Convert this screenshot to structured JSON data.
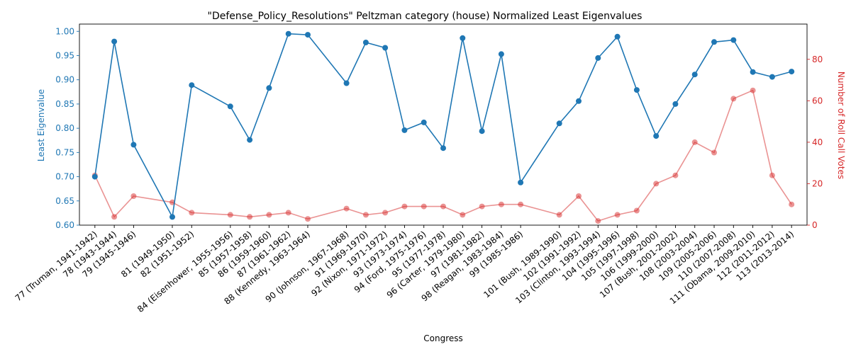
{
  "chart_data": {
    "type": "line",
    "title": "\"Defense_Policy_Resolutions\" Peltzman category (house) Normalized Least Eigenvalues",
    "xlabel": "Congress",
    "ylabel_left": "Least Eigenvalue",
    "ylabel_right": "Number of Roll Call Votes",
    "ylim_left": [
      0.6,
      1.015
    ],
    "ylim_right": [
      0,
      97
    ],
    "yticks_left": [
      "0.60",
      "0.65",
      "0.70",
      "0.75",
      "0.80",
      "0.85",
      "0.90",
      "0.95",
      "1.00"
    ],
    "yticks_right": [
      "0",
      "20",
      "40",
      "60",
      "80"
    ],
    "grid": false,
    "x": [
      77,
      78,
      79,
      81,
      82,
      84,
      85,
      86,
      87,
      88,
      90,
      91,
      92,
      93,
      94,
      95,
      96,
      97,
      98,
      99,
      101,
      102,
      103,
      104,
      105,
      106,
      107,
      108,
      109,
      110,
      111,
      112,
      113
    ],
    "x_tick_labels": [
      "77 (Truman, 1941-1942)",
      "78 (1943-1944)",
      "79 (1945-1946)",
      "81 (1949-1950)",
      "82 (1951-1952)",
      "84 (Eisenhower, 1955-1956)",
      "85 (1957-1958)",
      "86 (1959-1960)",
      "87 (1961-1962)",
      "88 (Kennedy, 1963-1964)",
      "90 (Johnson, 1967-1968)",
      "91 (1969-1970)",
      "92 (Nixon, 1971-1972)",
      "93 (1973-1974)",
      "94 (Ford, 1975-1976)",
      "95 (1977-1978)",
      "96 (Carter, 1979-1980)",
      "97 (1981-1982)",
      "98 (Reagan, 1983-1984)",
      "99 (1985-1986)",
      "101 (Bush, 1989-1990)",
      "102 (1991-1992)",
      "103 (Clinton, 1993-1994)",
      "104 (1995-1996)",
      "105 (1997-1998)",
      "106 (1999-2000)",
      "107 (Bush, 2001-2002)",
      "108 (2003-2004)",
      "109 (2005-2006)",
      "110 (2007-2008)",
      "111 (Obama, 2009-2010)",
      "112 (2011-2012)",
      "113 (2013-2014)"
    ],
    "series": [
      {
        "axis": "left",
        "color": "#1f77b4",
        "values": [
          0.7,
          0.979,
          0.766,
          0.617,
          0.889,
          0.845,
          0.776,
          0.883,
          0.995,
          0.993,
          0.893,
          0.977,
          0.966,
          0.796,
          0.812,
          0.759,
          0.986,
          0.794,
          0.953,
          0.688,
          0.81,
          0.856,
          0.945,
          0.989,
          0.879,
          0.784,
          0.85,
          0.911,
          0.978,
          0.982,
          0.916,
          0.906,
          0.917
        ]
      },
      {
        "axis": "right",
        "color": "#d62728",
        "values": [
          24,
          4,
          14,
          11,
          6,
          5,
          4,
          5,
          6,
          3,
          8,
          5,
          6,
          9,
          9,
          9,
          5,
          9,
          10,
          10,
          5,
          14,
          2,
          5,
          7,
          20,
          24,
          40,
          35,
          61,
          65,
          24,
          10
        ]
      }
    ]
  }
}
